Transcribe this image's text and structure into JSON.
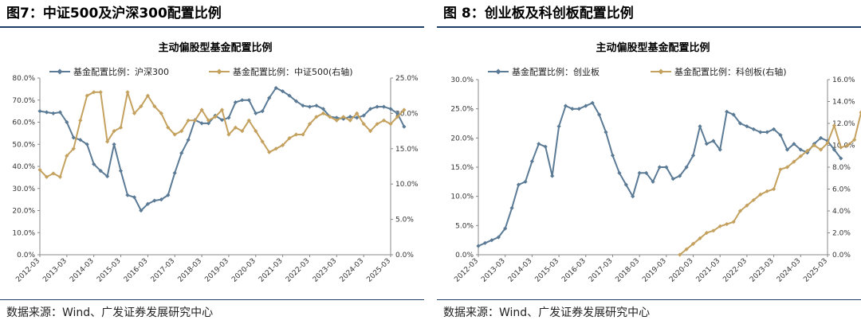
{
  "charts": [
    {
      "figure_title": "图7：中证500及沪深300配置比例",
      "source": "数据来源：Wind、广发证券发展研究中心"
    },
    {
      "figure_title": "图 8：创业板及科创板配置比例",
      "source": "数据来源：Wind、广发证券发展研究中心"
    }
  ],
  "chart_data": [
    {
      "type": "line",
      "title": "主动偏股型基金配置比例",
      "x_ticks": [
        "2012-03",
        "2013-03",
        "2014-03",
        "2015-03",
        "2016-03",
        "2017-03",
        "2018-03",
        "2019-03",
        "2020-03",
        "2021-03",
        "2022-03",
        "2023-03",
        "2024-03",
        "2025-03"
      ],
      "y_left": {
        "min": 0,
        "max": 80,
        "ticks": [
          "0.0%",
          "10.0%",
          "20.0%",
          "30.0%",
          "40.0%",
          "50.0%",
          "60.0%",
          "70.0%",
          "80.0%"
        ]
      },
      "y_right": {
        "min": 0,
        "max": 25,
        "ticks": [
          "0.0%",
          "5.0%",
          "10.0%",
          "15.0%",
          "20.0%",
          "25.0%"
        ]
      },
      "legend_position": "top",
      "series": [
        {
          "name": "基金配置比例：沪深300",
          "axis": "left",
          "color": "#5a7a95",
          "start": "2012-03",
          "values": [
            65,
            64.5,
            64,
            64.5,
            60,
            53,
            52,
            50,
            41,
            38,
            35.5,
            50,
            38,
            27,
            26,
            20,
            23,
            24.5,
            25,
            27,
            37,
            46,
            52,
            61,
            59.5,
            59.5,
            63,
            61,
            62,
            69,
            70,
            70,
            64,
            65,
            71,
            75.5,
            74,
            72,
            69.5,
            67.5,
            67,
            67.5,
            66,
            62.5,
            62,
            61.5,
            62.5,
            62,
            63,
            66,
            67,
            67,
            66,
            64,
            58
          ]
        },
        {
          "name": "基金配置比例：中证500(右轴)",
          "axis": "right",
          "color": "#c4a15e",
          "start": "2012-03",
          "values": [
            12,
            11,
            11.5,
            11,
            14,
            15,
            19,
            22.5,
            23,
            23,
            16,
            17.5,
            18,
            23,
            20,
            21,
            22.5,
            21,
            20,
            18,
            17,
            17.5,
            19,
            19,
            20.5,
            19,
            19.5,
            20.5,
            17,
            18,
            17.5,
            19,
            17.5,
            16,
            14.5,
            15,
            15.5,
            16.5,
            17,
            17,
            18.5,
            19.5,
            20,
            19.5,
            19,
            19.5,
            19,
            20,
            18.5,
            17.5,
            18.5,
            19,
            18.5,
            19.5,
            20.5
          ]
        }
      ]
    },
    {
      "type": "line",
      "title": "主动偏股型基金配置比例",
      "x_ticks": [
        "2012-03",
        "2013-03",
        "2014-03",
        "2015-03",
        "2016-03",
        "2017-03",
        "2018-03",
        "2019-03",
        "2020-03",
        "2021-03",
        "2022-03",
        "2023-03",
        "2024-03",
        "2025-03"
      ],
      "y_left": {
        "min": 0,
        "max": 30,
        "ticks": [
          "0.0%",
          "5.0%",
          "10.0%",
          "15.0%",
          "20.0%",
          "25.0%",
          "30.0%"
        ]
      },
      "y_right": {
        "min": 0,
        "max": 16,
        "ticks": [
          "0.0%",
          "2.0%",
          "4.0%",
          "6.0%",
          "8.0%",
          "10.0%",
          "12.0%",
          "14.0%",
          "16.0%"
        ]
      },
      "legend_position": "top",
      "series": [
        {
          "name": "基金配置比例：创业板",
          "axis": "left",
          "color": "#5a7a95",
          "start": "2012-03",
          "values": [
            1.5,
            2,
            2.5,
            3,
            4.5,
            8,
            12,
            12.5,
            16,
            19,
            18.5,
            13.5,
            22,
            25.5,
            25,
            25,
            25.5,
            26,
            24,
            21,
            17,
            14,
            12,
            10,
            14,
            14,
            12.5,
            15,
            15,
            13,
            13.5,
            15,
            17,
            22,
            19,
            19.5,
            18,
            24.5,
            24,
            22.5,
            22,
            21.5,
            21,
            21,
            21.5,
            20.5,
            18,
            19,
            18,
            17.5,
            19,
            20,
            19.5,
            18,
            16.5
          ]
        },
        {
          "name": "基金配置比例：科创板(右轴)",
          "axis": "right",
          "color": "#c4a15e",
          "start": "2019-09",
          "values": [
            0,
            0.5,
            1,
            1.5,
            2,
            2.2,
            2.6,
            2.8,
            3,
            4,
            4.5,
            5,
            5.5,
            5.8,
            6,
            7.8,
            8,
            8.5,
            9,
            9.5,
            10,
            9.6,
            10.2,
            11.8,
            9.8,
            10,
            10.5,
            13,
            15.2
          ]
        }
      ]
    }
  ]
}
